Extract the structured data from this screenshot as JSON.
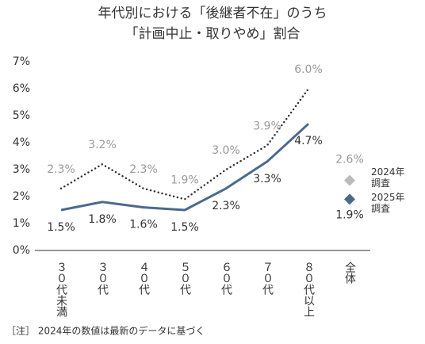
{
  "chart_data": {
    "type": "line",
    "title": [
      "年代別における「後継者不在」のうち",
      "「計画中止・取りやめ」割合"
    ],
    "categories": [
      "３０代未満",
      "３０代",
      "４０代",
      "５０代",
      "６０代",
      "７０代",
      "８０代以上"
    ],
    "summary_category": "全体",
    "series": [
      {
        "name": "2024年調査",
        "color": "#333333",
        "label_color": "#999999",
        "dash": "dotted",
        "values": [
          2.3,
          3.2,
          2.3,
          1.9,
          3.0,
          3.9,
          6.0
        ],
        "value_labels": [
          "2.3%",
          "3.2%",
          "2.3%",
          "1.9%",
          "3.0%",
          "3.9%",
          "6.0%"
        ],
        "summary_value": 2.6,
        "summary_label": "2.6%",
        "marker_color": "#bbbbbb"
      },
      {
        "name": "2025年調査",
        "color": "#4a6a8c",
        "label_color": "#333333",
        "dash": "solid",
        "values": [
          1.5,
          1.8,
          1.6,
          1.5,
          2.3,
          3.3,
          4.7
        ],
        "value_labels": [
          "1.5%",
          "1.8%",
          "1.6%",
          "1.5%",
          "2.3%",
          "3.3%",
          "4.7%"
        ],
        "summary_value": 1.9,
        "summary_label": "1.9%",
        "marker_color": "#4a6a8c"
      }
    ],
    "ylim": [
      0,
      7
    ],
    "yticks": [
      {
        "value": 0,
        "label": "0%"
      },
      {
        "value": 1,
        "label": "1%"
      },
      {
        "value": 2,
        "label": "2%"
      },
      {
        "value": 3,
        "label": "3%"
      },
      {
        "value": 4,
        "label": "4%"
      },
      {
        "value": 5,
        "label": "5%"
      },
      {
        "value": 6,
        "label": "6%"
      },
      {
        "value": 7,
        "label": "7%"
      }
    ],
    "note": "［注］ 2024年の数値は最新のデータに基づく"
  }
}
